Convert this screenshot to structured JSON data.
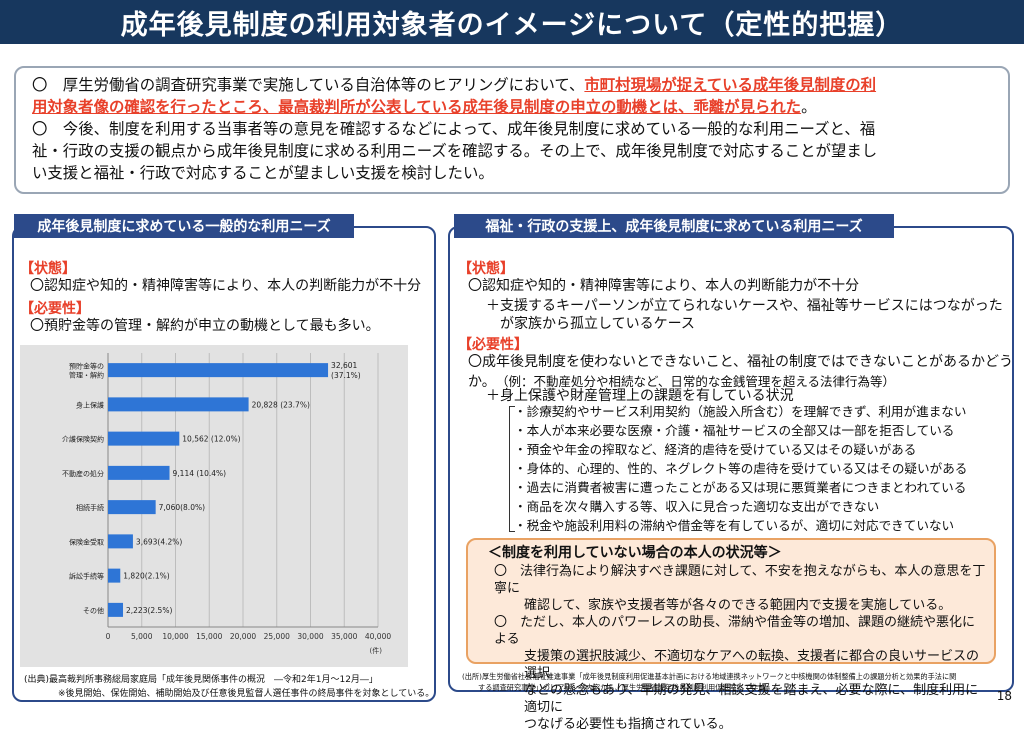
{
  "title": "成年後見制度の利用対象者のイメージについて（定性的把握）",
  "intro": {
    "p1_mark": "〇",
    "p1_a": "　厚生労働省の調査研究事業で実施している自治体等のヒアリングにおいて、",
    "p1_red_1": "市町村現場が捉えている成年後見制度の利",
    "p1_red_2": "用対象者像の確認を行ったところ、最高裁判所が公表している成年後見制度の申立の動機とは、乖離が見られた",
    "p1_end": "。",
    "p2_mark": "〇",
    "p2_a": "　今後、制度を利用する当事者等の意見を確認するなどによって、成年後見制度に求めている一般的な利用ニーズと、福",
    "p2_b": "祉・行政の支援の観点から成年後見制度に求める利用ニーズを確認する。その上で、成年後見制度で対応することが望まし",
    "p2_c": "い支援と福祉・行政で対応することが望ましい支援を検討したい。"
  },
  "left": {
    "header": "成年後見制度に求めている一般的な利用ニーズ",
    "state_label": "【状態】",
    "state_text": "〇認知症や知的・精神障害等により、本人の判断能力が不十分",
    "need_label": "【必要性】",
    "need_text": "〇預貯金等の管理・解約が申立の動機として最も多い。",
    "source_1": "(出典)最高裁判所事務総局家庭局「成年後見関係事件の概況　―令和2年1月～12月―」",
    "source_2": "※後見開始、保佐開始、補助開始及び任意後見監督人選任事件の終局事件を対象としている。"
  },
  "chart_data": {
    "type": "bar",
    "orientation": "horizontal",
    "categories": [
      "預貯金等の\n管理・解約",
      "身上保護",
      "介護保険契約",
      "不動産の処分",
      "相続手続",
      "保険金受取",
      "訴訟手続等",
      "その他"
    ],
    "values": [
      32601,
      20828,
      10562,
      9114,
      7060,
      3693,
      1820,
      2223
    ],
    "labels": [
      "32,601\n(37.1%)",
      "20,828 (23.7%)",
      "10,562 (12.0%)",
      "9,114 (10.4%)",
      "7,060(8.0%)",
      "3,693(4.2%)",
      "1,820(2.1%)",
      "2,223(2.5%)"
    ],
    "x_ticks": [
      "0",
      "5,000",
      "10,000",
      "15,000",
      "20,000",
      "25,000",
      "30,000",
      "35,000",
      "40,000"
    ],
    "xlim": [
      0,
      40000
    ],
    "unit": "(件)",
    "bar_color": "#2e75d6",
    "grid": true
  },
  "right": {
    "header": "福祉・行政の支援上、成年後見制度に求めている利用ニーズ",
    "state_label": "【状態】",
    "state_1": "〇認知症や知的・精神障害等により、本人の判断能力が不十分",
    "state_2": "＋支援するキーパーソンが立てられないケースや、福祉等サービスにはつながった",
    "state_3": "が家族から孤立しているケース",
    "need_label": "【必要性】",
    "need_1": "〇成年後見制度を使わないとできないこと、福祉の制度ではできないことがあるかどうか。",
    "need_2": "（例：不動産処分や相続など、日常的な金銭管理を超える法律行為等）",
    "need_3": "＋身上保護や財産管理上の課題を有している状況",
    "items": [
      "・診療契約やサービス利用契約（施設入所含む）を理解できず、利用が進まない",
      "・本人が本来必要な医療・介護・福祉サービスの全部又は一部を拒否している",
      "・預金や年金の搾取など、経済的虐待を受けている又はその疑いがある",
      "・身体的、心理的、性的、ネグレクト等の虐待を受けている又はその疑いがある",
      "・過去に消費者被害に遭ったことがある又は現に悪質業者につきまとわれている",
      "・商品を次々購入する等、収入に見合った適切な支出ができない",
      "・税金や施設利用料の滞納や借金等を有しているが、適切に対応できていない"
    ],
    "box_title": "＜制度を利用していない場合の本人の状況等＞",
    "box_1a": "〇　法律行為により解決すべき課題に対して、不安を抱えながらも、本人の意思を丁寧に",
    "box_1b": "確認して、家族や支援者等が各々のできる範囲内で支援を実施している。",
    "box_2a": "〇　ただし、本人のパワーレスの助長、滞納や借金等の増加、課題の継続や悪化による",
    "box_2b": "支援策の選択肢減少、不適切なケアへの転換、支援者に都合の良いサービスの選択",
    "box_2c": "などの懸念もあり、早期の発見、相談支援を踏まえ、必要な際に、制度利用に適切に",
    "box_2d": "つなげる必要性も指摘されている。",
    "source_1": "(出所)厚生労働省社会福祉推進事業「成年後見制度利用促進基本計画における地域連携ネットワークと中核機関の体制整備上の課題分析と効果的手法に関",
    "source_2": "する調査研究事業」のヒアリング内容から、厚生労働省成年後見制度利用促進室にて作成。"
  },
  "page_number": "18"
}
